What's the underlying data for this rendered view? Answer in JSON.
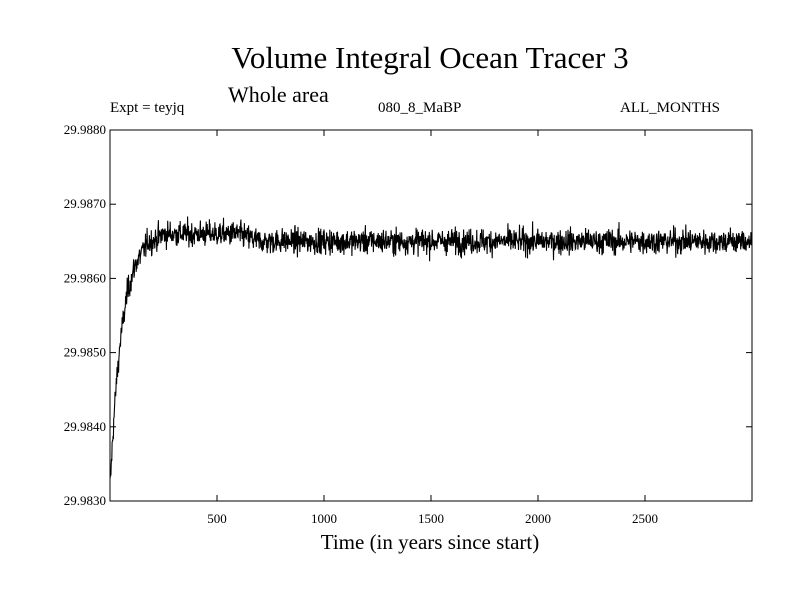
{
  "chart_data": {
    "type": "line",
    "title": "Volume Integral Ocean Tracer 3",
    "subtitle": "Whole area",
    "header_left": "Expt = teyjq",
    "header_center": "080_8_MaBP",
    "header_right": "ALL_MONTHS",
    "xlabel": "Time (in years since start)",
    "ylabel": "",
    "xlim": [
      0,
      3000
    ],
    "ylim": [
      29.983,
      29.988
    ],
    "x_ticks": [
      500,
      1000,
      1500,
      2000,
      2500
    ],
    "x_tick_labels": [
      "500",
      "1000",
      "1500",
      "2000",
      "2500"
    ],
    "y_ticks": [
      29.983,
      29.984,
      29.985,
      29.986,
      29.987,
      29.988
    ],
    "y_tick_labels": [
      "29.9830",
      "29.9840",
      "29.9850",
      "29.9860",
      "29.9870",
      "29.9880"
    ],
    "grid": false,
    "series": [
      {
        "color": "#000000",
        "x": [
          1,
          10,
          20,
          30,
          40,
          50,
          60,
          70,
          80,
          90,
          100,
          120,
          140,
          160,
          180,
          200,
          250,
          300,
          350,
          400,
          450,
          500,
          600,
          700,
          800,
          900,
          1000,
          1200,
          1400,
          1600,
          1800,
          2000,
          2200,
          2400,
          2600,
          2800,
          3000
        ],
        "y": [
          29.9832,
          29.9837,
          29.9842,
          29.9846,
          29.9849,
          29.9852,
          29.9854,
          29.9856,
          29.9858,
          29.9859,
          29.986,
          29.9862,
          29.9863,
          29.9864,
          29.9865,
          29.9865,
          29.9866,
          29.9866,
          29.9866,
          29.9866,
          29.9866,
          29.9866,
          29.9866,
          29.9865,
          29.9865,
          29.9865,
          29.9865,
          29.9865,
          29.9865,
          29.9865,
          29.9865,
          29.9865,
          29.9865,
          29.9865,
          29.9865,
          29.9865,
          29.9865
        ]
      }
    ]
  }
}
